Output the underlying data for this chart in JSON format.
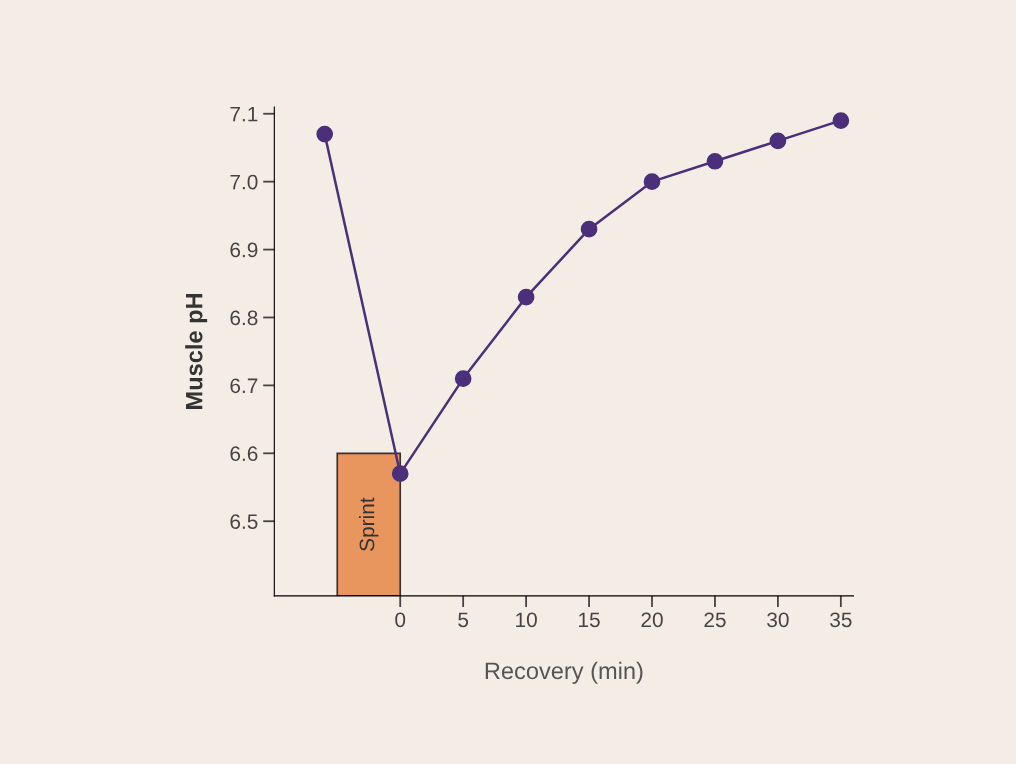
{
  "chart_data": {
    "type": "line",
    "xlabel": "Recovery (min)",
    "ylabel": "Muscle pH",
    "xlim": [
      -10,
      36
    ],
    "ylim": [
      6.39,
      7.11
    ],
    "xticks": [
      0,
      5,
      10,
      15,
      20,
      25,
      30,
      35
    ],
    "yticks": [
      6.5,
      6.6,
      6.7,
      6.8,
      6.9,
      {
        "value": 7.0,
        "label": "7.0"
      },
      7.1
    ],
    "grid": false,
    "legend": false,
    "marker": "circle",
    "line_style": "solid",
    "series": [
      {
        "name": "Sprint",
        "type": "bar",
        "x": [
          -2.5
        ],
        "values": [
          6.6
        ],
        "color": "#e8955e"
      },
      {
        "x": [
          -6,
          0,
          5,
          10,
          15,
          20,
          25,
          30,
          35
        ],
        "values": [
          7.07,
          6.57,
          6.71,
          6.83,
          6.93,
          7.0,
          7.03,
          7.06,
          7.09
        ],
        "color": "#4b2f7a"
      }
    ]
  }
}
